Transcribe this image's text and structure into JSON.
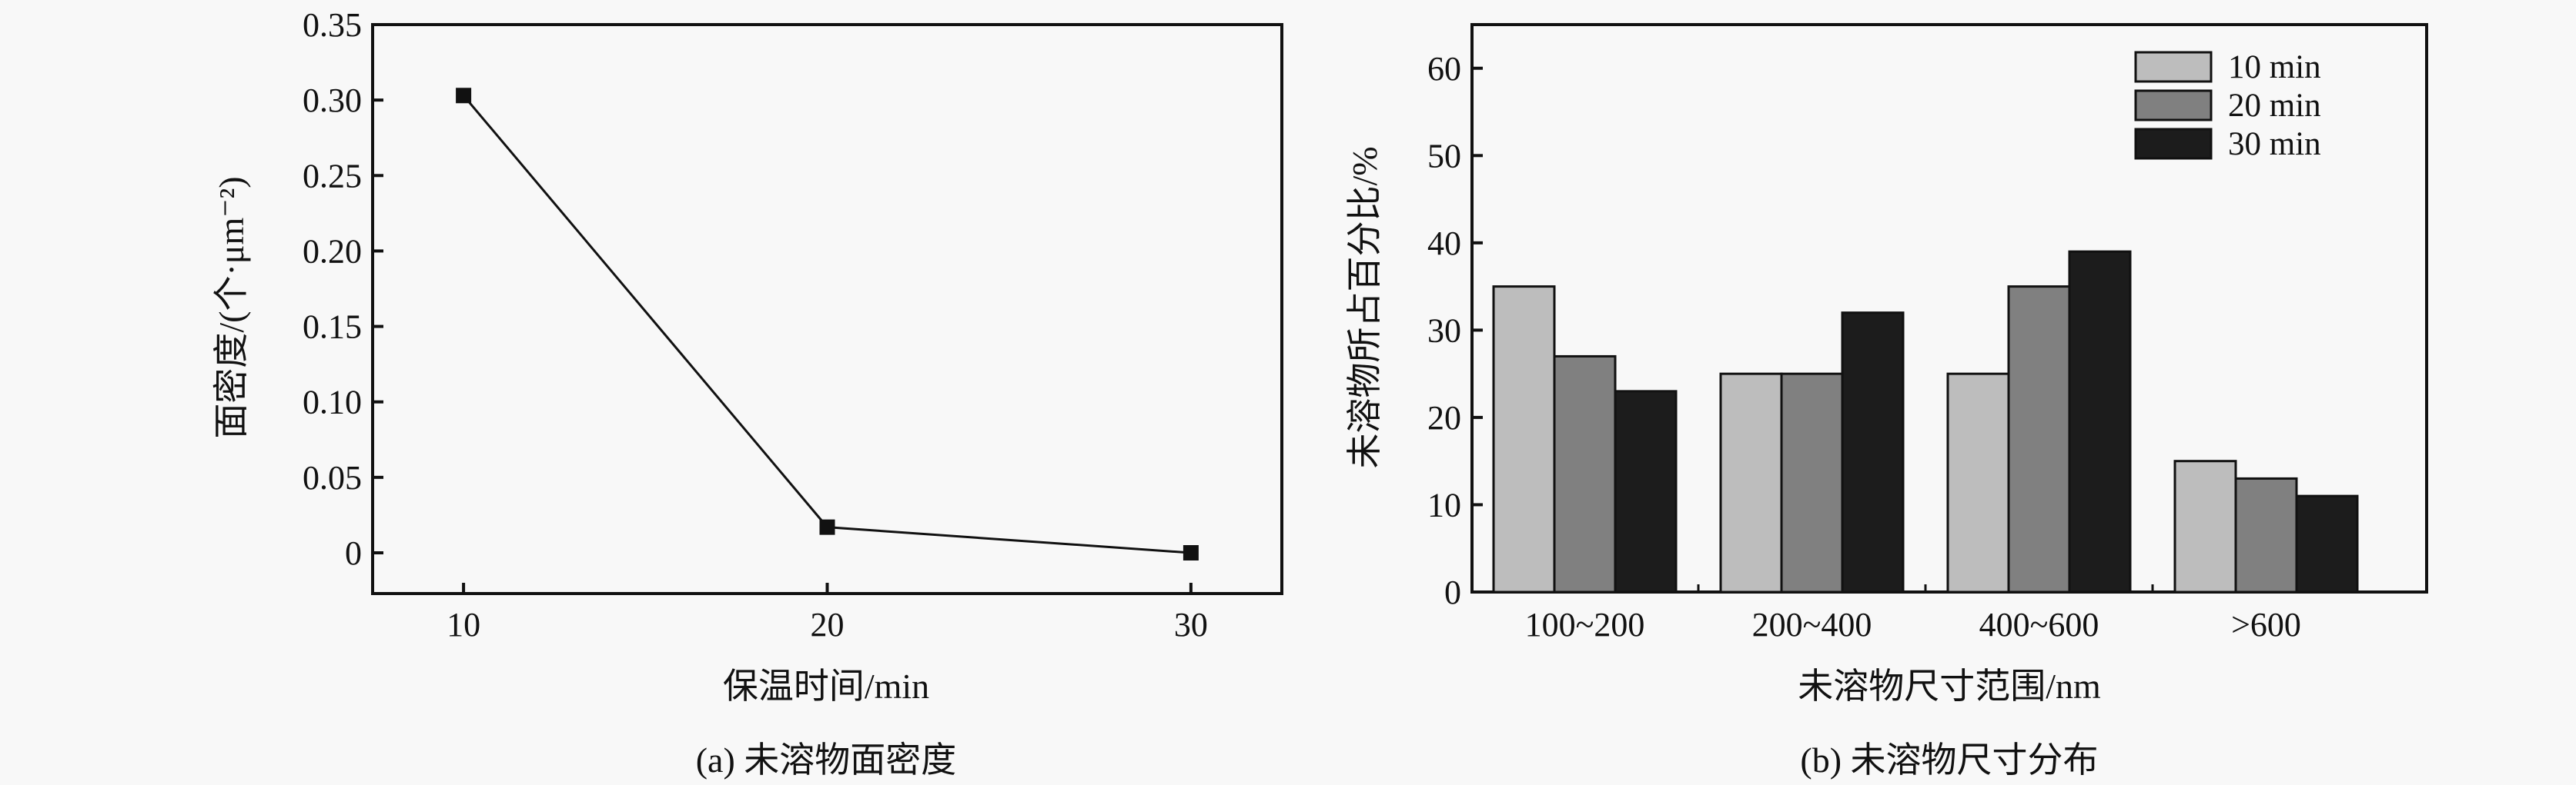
{
  "chart_data": [
    {
      "type": "line",
      "caption": "(a) 未溶物面密度",
      "xlabel": "保温时间/min",
      "ylabel": "面密度/(个·μm⁻²)",
      "x": [
        10,
        20,
        30
      ],
      "values": [
        0.303,
        0.017,
        0
      ],
      "xticks": [
        "10",
        "20",
        "30"
      ],
      "yticks": [
        "0",
        "0.05",
        "0.10",
        "0.15",
        "0.20",
        "0.25",
        "0.30",
        "0.35"
      ],
      "xlim": [
        7.5,
        32.5
      ],
      "ylim": [
        -0.027,
        0.35
      ],
      "marker": "square",
      "grid": false
    },
    {
      "type": "bar",
      "caption": "(b) 未溶物尺寸分布",
      "xlabel": "未溶物尺寸范围/nm",
      "ylabel": "未溶物所占百分比/%",
      "categories": [
        "100~200",
        "200~400",
        "400~600",
        ">600"
      ],
      "series": [
        {
          "name": "10 min",
          "values": [
            35,
            25,
            25,
            15
          ],
          "color": "#bdbdbd"
        },
        {
          "name": "20 min",
          "values": [
            27,
            25,
            35,
            13
          ],
          "color": "#808080"
        },
        {
          "name": "30 min",
          "values": [
            23,
            32,
            39,
            11
          ],
          "color": "#1c1c1c"
        }
      ],
      "yticks": [
        "0",
        "10",
        "20",
        "30",
        "40",
        "50",
        "60"
      ],
      "ylim": [
        0,
        65
      ],
      "legend": "top-right",
      "grid": false
    }
  ]
}
